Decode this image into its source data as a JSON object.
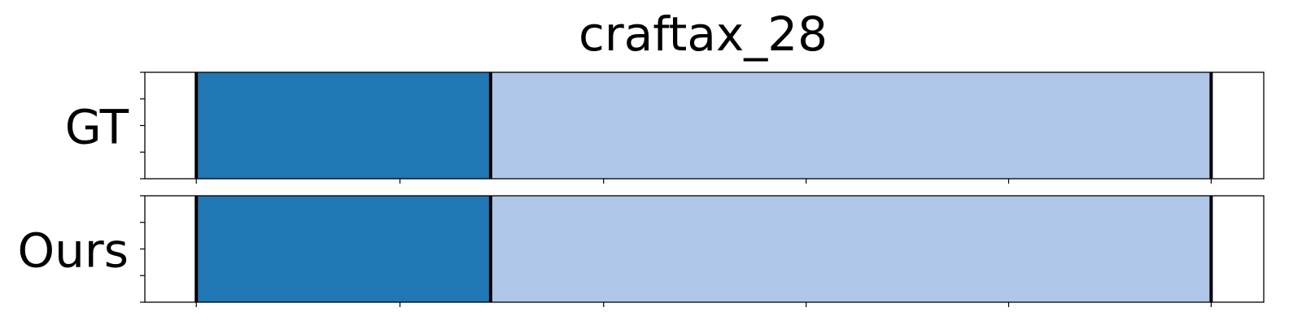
{
  "chart_data": {
    "type": "bar",
    "title": "craftax_28",
    "xlim": [
      0,
      1
    ],
    "rows": [
      {
        "label": "GT",
        "segments": [
          {
            "start": 0.046,
            "end": 0.309,
            "color": "#1f77b4"
          },
          {
            "start": 0.309,
            "end": 0.953,
            "color": "#aec7e8"
          }
        ],
        "boundaries": [
          0.046,
          0.309,
          0.953
        ]
      },
      {
        "label": "Ours",
        "segments": [
          {
            "start": 0.046,
            "end": 0.309,
            "color": "#1f77b4"
          },
          {
            "start": 0.309,
            "end": 0.953,
            "color": "#aec7e8"
          }
        ],
        "boundaries": [
          0.046,
          0.309,
          0.953
        ]
      }
    ],
    "xticks": [
      0.046,
      0.228,
      0.41,
      0.591,
      0.772,
      0.953
    ],
    "yticks_per_row": 5,
    "grid": false,
    "legend": "none"
  }
}
